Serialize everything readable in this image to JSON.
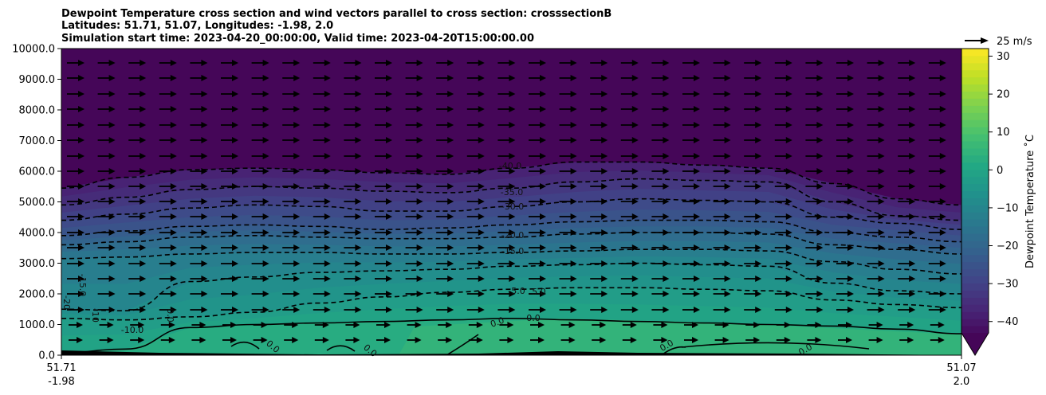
{
  "chart_data": {
    "type": "heatmap",
    "title_lines": [
      "Dewpoint Temperature cross section and wind vectors parallel to cross section: crosssectionB",
      "Latitudes: 51.71, 51.07, Longitudes: -1.98, 2.0",
      "Simulation start time: 2023-04-20_00:00:00, Valid time: 2023-04-20T15:00:00.00"
    ],
    "y_ticks": [
      "0.0",
      "1000.0",
      "2000.0",
      "3000.0",
      "4000.0",
      "5000.0",
      "6000.0",
      "7000.0",
      "8000.0",
      "9000.0",
      "10000.0"
    ],
    "ylim": [
      0,
      10000
    ],
    "x_ticks": [
      {
        "lat": "51.71",
        "lon": "-1.98"
      },
      {
        "lat": "51.07",
        "lon": "2.0"
      }
    ],
    "colorbar": {
      "label": "Dewpoint Temperature ˚C",
      "ticks": [
        "30",
        "20",
        "10",
        "0",
        "−10",
        "−20",
        "−30",
        "−40"
      ],
      "tick_values": [
        30,
        20,
        10,
        0,
        -10,
        -20,
        -30,
        -40
      ],
      "range": [
        -45,
        32
      ],
      "colors": [
        "#440154",
        "#482475",
        "#414487",
        "#355f8d",
        "#2a788e",
        "#21918c",
        "#22a884",
        "#44bf70",
        "#7ad151",
        "#bddf26",
        "#fde725"
      ]
    },
    "quiver_key": {
      "label": "25 m/s",
      "value": 25
    },
    "contour_labels": [
      "-40.0",
      "-35.0",
      "-30.0",
      "-20.0",
      "-15.0",
      "-5.0",
      "5.0",
      "0.0",
      "-10.0",
      "-15.0",
      "0.0",
      "0.0",
      "0.0",
      "0.0",
      "0.0",
      "0.0",
      "-20",
      "-10"
    ],
    "contour_levels": [
      {
        "level": -40,
        "heights": [
          5450,
          5800,
          6050,
          6100,
          6050,
          5950,
          5900,
          6100,
          6300,
          6300,
          6200,
          6100,
          5600,
          5100,
          4900
        ]
      },
      {
        "level": -35,
        "heights": [
          4900,
          5150,
          5400,
          5500,
          5450,
          5350,
          5300,
          5450,
          5650,
          5750,
          5700,
          5650,
          5000,
          4550,
          4400
        ]
      },
      {
        "level": -30,
        "heights": [
          4400,
          4600,
          4800,
          4900,
          4850,
          4700,
          4700,
          4850,
          5000,
          5100,
          5050,
          5000,
          4500,
          4300,
          4100
        ]
      },
      {
        "level": -25,
        "heights": [
          3900,
          4050,
          4200,
          4250,
          4200,
          4100,
          4150,
          4250,
          4350,
          4400,
          4400,
          4350,
          4000,
          3850,
          3700
        ]
      },
      {
        "level": -20,
        "heights": [
          3600,
          3700,
          3850,
          3900,
          3850,
          3800,
          3800,
          3850,
          3950,
          4000,
          4000,
          3950,
          3600,
          3450,
          3300
        ]
      },
      {
        "level": -15,
        "heights": [
          3150,
          3200,
          3300,
          3350,
          3350,
          3300,
          3300,
          3350,
          3400,
          3450,
          3450,
          3400,
          3050,
          2800,
          2650
        ]
      },
      {
        "level": -10,
        "heights": [
          1500,
          1450,
          2400,
          2550,
          2700,
          2750,
          2800,
          2900,
          2950,
          3000,
          2950,
          2900,
          2350,
          2100,
          2000
        ]
      },
      {
        "level": -5,
        "heights": [
          1200,
          1150,
          1250,
          1400,
          1700,
          1900,
          2050,
          2150,
          2200,
          2200,
          2150,
          2100,
          1800,
          1650,
          1550
        ]
      },
      {
        "level": 0,
        "heights": [
          80,
          200,
          900,
          1000,
          1050,
          1100,
          1150,
          1200,
          1150,
          1100,
          1050,
          1000,
          950,
          850,
          700
        ]
      }
    ],
    "wind": {
      "direction": "parallel, left-to-right",
      "max_speed_ms": 25
    }
  }
}
